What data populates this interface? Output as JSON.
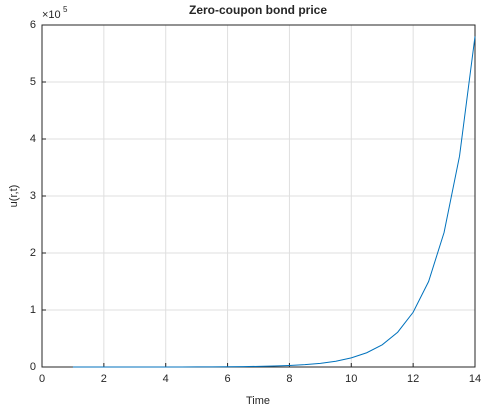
{
  "chart_data": {
    "type": "line",
    "title": "Zero-coupon bond price",
    "xlabel": "Time",
    "ylabel": "u(r,t)",
    "y_multiplier": "×10",
    "y_exponent": "5",
    "x": [
      1,
      1.5,
      2,
      2.5,
      3,
      3.5,
      4,
      4.5,
      5,
      5.5,
      6,
      6.5,
      7,
      7.5,
      8,
      8.5,
      9,
      9.5,
      10,
      10.5,
      11,
      11.5,
      12,
      12.5,
      13,
      13.5,
      14
    ],
    "series": [
      {
        "name": "u",
        "color": "#0072bd",
        "values": [
          0,
          0,
          0,
          0,
          0,
          0,
          0,
          0,
          0.002,
          0.003,
          0.004,
          0.007,
          0.011,
          0.017,
          0.026,
          0.041,
          0.064,
          0.1,
          0.16,
          0.25,
          0.39,
          0.61,
          0.96,
          1.5,
          2.36,
          3.7,
          5.8
        ]
      }
    ],
    "xlim": [
      0,
      14
    ],
    "xticks": [
      0,
      2,
      4,
      6,
      8,
      10,
      12,
      14
    ],
    "ylim": [
      0,
      6
    ],
    "yticks": [
      0,
      1,
      2,
      3,
      4,
      5,
      6
    ],
    "grid": true
  }
}
